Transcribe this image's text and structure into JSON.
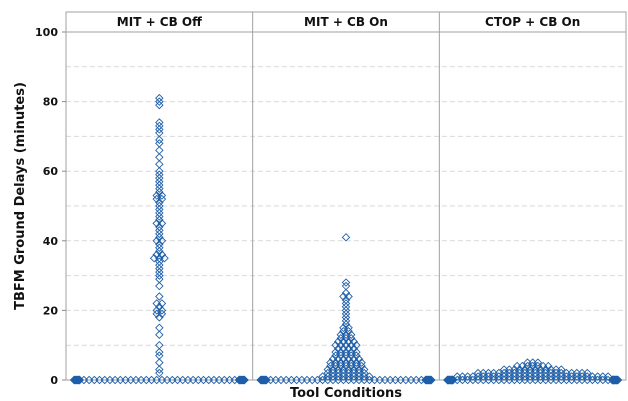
{
  "chart_data": {
    "type": "scatter",
    "subtype": "individual value plot (diamond markers, jittered)",
    "xlabel": "Tool Conditions",
    "ylabel": "TBFM Ground Delays (minutes)",
    "ylim": [
      0,
      100
    ],
    "y_ticks": [
      0,
      20,
      40,
      60,
      80,
      100
    ],
    "grid": "horizontal dashed, every 10 minutes",
    "marker_color": "#1f5fa8",
    "panels": [
      {
        "label": "MIT + CB Off",
        "points": [
          0,
          0,
          0,
          0,
          0,
          0,
          0,
          0,
          0,
          0,
          0,
          0,
          0,
          0,
          0,
          0,
          0,
          0,
          0,
          0,
          0,
          0,
          0,
          0,
          0,
          0,
          0,
          0,
          0,
          0,
          0,
          0,
          0,
          0,
          0,
          0,
          0,
          0,
          0,
          0,
          0,
          0,
          0,
          0,
          0,
          0,
          0,
          0,
          0,
          0,
          0,
          0,
          0,
          0,
          0,
          0,
          0,
          0,
          0,
          0,
          0,
          0,
          0,
          0,
          0,
          0,
          0,
          0,
          0,
          0,
          2,
          3,
          5,
          7,
          8,
          10,
          13,
          15,
          18,
          19,
          19,
          20,
          20,
          21,
          22,
          22,
          24,
          27,
          29,
          30,
          31,
          32,
          33,
          34,
          35,
          35,
          35,
          36,
          36,
          37,
          38,
          39,
          40,
          40,
          41,
          42,
          43,
          44,
          45,
          45,
          46,
          47,
          48,
          49,
          50,
          51,
          52,
          52,
          53,
          53,
          54,
          55,
          56,
          57,
          58,
          59,
          60,
          62,
          64,
          66,
          68,
          69,
          71,
          72,
          73,
          74,
          79,
          80,
          81
        ]
      },
      {
        "label": "MIT + CB On",
        "points": [
          0,
          0,
          0,
          0,
          0,
          0,
          0,
          0,
          0,
          0,
          0,
          0,
          0,
          0,
          0,
          0,
          0,
          0,
          0,
          0,
          0,
          0,
          0,
          0,
          0,
          0,
          0,
          0,
          0,
          0,
          0,
          0,
          0,
          0,
          0,
          0,
          0,
          0,
          0,
          0,
          0,
          0,
          0,
          0,
          0,
          0,
          0,
          0,
          0,
          0,
          0,
          0,
          0,
          0,
          0,
          0,
          0,
          0,
          0,
          0,
          0,
          0,
          0,
          0,
          0,
          0,
          0,
          0,
          0,
          0,
          0,
          0,
          0,
          0,
          0,
          0,
          0,
          0,
          0,
          0,
          1,
          1,
          1,
          1,
          1,
          1,
          1,
          1,
          1,
          1,
          2,
          2,
          2,
          2,
          2,
          2,
          2,
          2,
          3,
          3,
          3,
          3,
          3,
          3,
          3,
          3,
          4,
          4,
          4,
          4,
          4,
          4,
          4,
          5,
          5,
          5,
          5,
          5,
          5,
          5,
          6,
          6,
          6,
          6,
          6,
          6,
          7,
          7,
          7,
          7,
          7,
          8,
          8,
          8,
          8,
          8,
          9,
          9,
          9,
          9,
          10,
          10,
          10,
          10,
          10,
          11,
          11,
          11,
          11,
          12,
          12,
          12,
          13,
          13,
          13,
          14,
          14,
          15,
          15,
          16,
          17,
          18,
          19,
          20,
          21,
          22,
          23,
          24,
          24,
          25,
          27,
          28,
          41
        ]
      },
      {
        "label": "CTOP + CB On",
        "points": [
          0,
          0,
          0,
          0,
          0,
          0,
          0,
          0,
          0,
          0,
          0,
          0,
          0,
          0,
          0,
          0,
          0,
          0,
          0,
          0,
          0,
          0,
          0,
          0,
          0,
          0,
          0,
          0,
          0,
          0,
          0,
          0,
          0,
          0,
          0,
          0,
          0,
          0,
          0,
          0,
          0,
          0,
          0,
          0,
          0,
          0,
          0,
          0,
          0,
          0,
          0,
          0,
          0,
          0,
          0,
          0,
          0,
          0,
          0,
          0,
          0,
          0,
          0,
          0,
          0,
          0,
          0,
          0,
          0,
          0,
          0,
          0,
          0,
          0,
          0,
          0,
          0,
          0,
          0,
          0,
          0,
          0,
          0,
          0,
          0,
          0,
          0,
          0,
          0,
          0,
          0,
          0,
          0,
          0,
          0,
          0,
          0,
          0,
          0,
          0,
          1,
          1,
          1,
          1,
          1,
          1,
          1,
          1,
          1,
          1,
          1,
          1,
          1,
          1,
          1,
          1,
          1,
          1,
          1,
          1,
          1,
          1,
          1,
          1,
          1,
          1,
          1,
          1,
          1,
          1,
          2,
          2,
          2,
          2,
          2,
          2,
          2,
          2,
          2,
          2,
          2,
          2,
          2,
          2,
          2,
          2,
          2,
          2,
          2,
          2,
          2,
          2,
          3,
          3,
          3,
          3,
          3,
          3,
          3,
          3,
          3,
          3,
          3,
          3,
          4,
          4,
          4,
          4,
          4,
          4,
          4,
          5,
          5,
          5
        ]
      }
    ]
  }
}
